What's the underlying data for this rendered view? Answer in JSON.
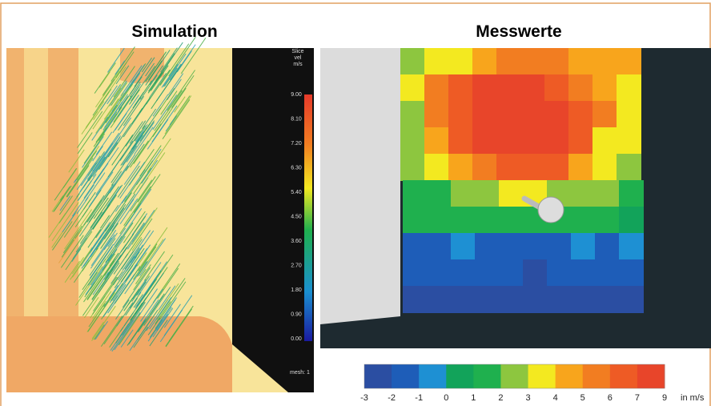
{
  "titles": {
    "simulation": "Simulation",
    "measurement": "Messwerte"
  },
  "simulation_scale": {
    "header": [
      "Slice",
      "vel",
      "m/s"
    ],
    "ticks": [
      "9.00",
      "8.10",
      "7.20",
      "6.30",
      "5.40",
      "4.50",
      "3.60",
      "2.70",
      "1.80",
      "0.90",
      "0.00"
    ],
    "footer": "mesh: 1"
  },
  "measurement_scale": {
    "ticks": [
      "-3",
      "-2",
      "-1",
      "0",
      "1",
      "2",
      "3",
      "4",
      "5",
      "6",
      "7",
      "9"
    ],
    "unit": "in m/s",
    "colors": [
      "#2b4ea2",
      "#1e5db8",
      "#1e90d3",
      "#12a35a",
      "#1fb04e",
      "#8dc63f",
      "#f3e920",
      "#f8a51c",
      "#f27d21",
      "#ee5b25",
      "#e8452a"
    ]
  }
}
